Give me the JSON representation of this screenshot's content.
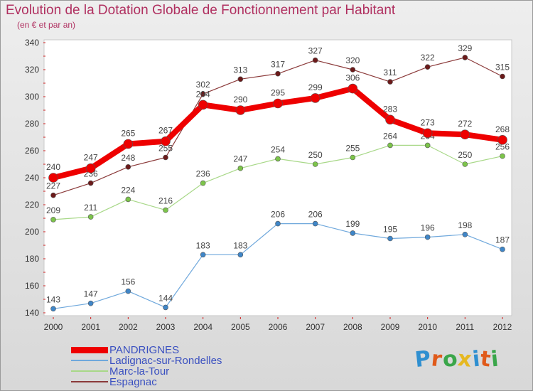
{
  "title": "Evolution de la Dotation Globale de Fonctionnement par Habitant",
  "subtitle": "(en € et par an)",
  "logo": {
    "text": "Proxiti",
    "colors": [
      "#2f8fd0",
      "#e05a1a",
      "#3aa64a",
      "#e6b820",
      "#2f8fd0",
      "#e05a1a",
      "#3aa64a"
    ]
  },
  "chart_data": {
    "type": "line",
    "x": [
      2000,
      2001,
      2002,
      2003,
      2004,
      2005,
      2006,
      2007,
      2008,
      2009,
      2010,
      2011,
      2012
    ],
    "ylim": [
      140,
      340
    ],
    "yticks": [
      140,
      160,
      180,
      200,
      220,
      240,
      260,
      280,
      300,
      320,
      340
    ],
    "grid": false,
    "legend_position": "bottom-left",
    "series": [
      {
        "name": "Espagnac",
        "color": "#8b3a3a",
        "marker_color": "#6b1a1a",
        "width": 1.2,
        "marker_r": 3.5,
        "values": [
          227,
          236,
          248,
          255,
          302,
          313,
          317,
          327,
          320,
          311,
          322,
          329,
          315
        ]
      },
      {
        "name": "Marc-la-Tour",
        "color": "#a8d888",
        "marker_color": "#7cc44a",
        "width": 1.2,
        "marker_r": 3.5,
        "values": [
          209,
          211,
          224,
          216,
          236,
          247,
          254,
          250,
          255,
          264,
          264,
          250,
          256
        ]
      },
      {
        "name": "Ladignac-sur-Rondelles",
        "color": "#6fa8dc",
        "marker_color": "#3f86c8",
        "width": 1.2,
        "marker_r": 3.5,
        "values": [
          143,
          147,
          156,
          144,
          183,
          183,
          206,
          206,
          199,
          195,
          196,
          198,
          187
        ]
      },
      {
        "name": "PANDRIGNES",
        "color": "#ee0000",
        "marker_color": "#ee0000",
        "width": 8,
        "marker_r": 6.5,
        "values": [
          240,
          247,
          265,
          267,
          294,
          290,
          295,
          299,
          306,
          283,
          273,
          272,
          268
        ]
      }
    ],
    "legend_order": [
      "PANDRIGNES",
      "Ladignac-sur-Rondelles",
      "Marc-la-Tour",
      "Espagnac"
    ]
  }
}
